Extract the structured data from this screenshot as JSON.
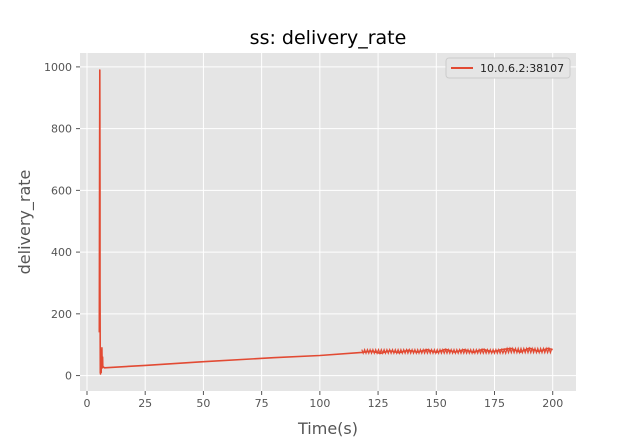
{
  "chart_data": {
    "type": "line",
    "title": "ss: delivery_rate",
    "xlabel": "Time(s)",
    "ylabel": "delivery_rate",
    "xlim": [
      -3,
      210
    ],
    "ylim": [
      -50,
      1045
    ],
    "xticks": [
      0,
      25,
      50,
      75,
      100,
      125,
      150,
      175,
      200
    ],
    "yticks": [
      0,
      200,
      400,
      600,
      800,
      1000
    ],
    "grid": true,
    "legend_position": "top-right",
    "colors": {
      "series": "#E24A33",
      "background": "#E5E5E5",
      "grid": "#FFFFFF"
    },
    "series": [
      {
        "name": "10.0.6.2:38107",
        "x": [
          5.3,
          5.4,
          5.5,
          5.6,
          5.6,
          5.7,
          5.8,
          5.8,
          5.9,
          6.0,
          6.1,
          6.2,
          6.3,
          6.4,
          6.5,
          6.6,
          6.7,
          6.8,
          7.0,
          7.5,
          25,
          50,
          80,
          100,
          118,
          122,
          126,
          130,
          134,
          138,
          142,
          146,
          150,
          154,
          158,
          162,
          166,
          170,
          174,
          178,
          182,
          186,
          190,
          194,
          198,
          200
        ],
        "y": [
          140,
          710,
          990,
          600,
          300,
          8,
          15,
          5,
          60,
          20,
          10,
          85,
          30,
          90,
          40,
          25,
          60,
          30,
          28,
          25,
          33,
          45,
          58,
          65,
          75,
          79,
          72,
          80,
          74,
          82,
          76,
          84,
          75,
          85,
          76,
          84,
          75,
          85,
          77,
          84,
          88,
          76,
          89,
          78,
          88,
          84
        ]
      }
    ]
  }
}
